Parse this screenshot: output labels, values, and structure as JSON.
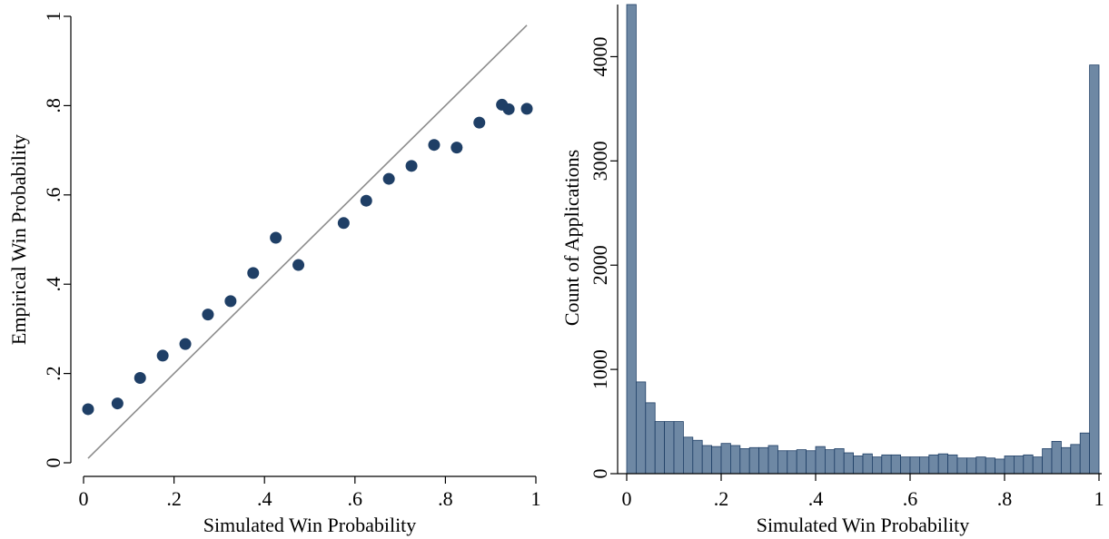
{
  "colors": {
    "marker": "#1f3f66",
    "reference_line": "#8c8c8c",
    "bar_fill": "#6e88a4",
    "bar_stroke": "#1f3f66",
    "axis": "#000000"
  },
  "chart_data": [
    {
      "type": "scatter",
      "title": "",
      "xlabel": "Simulated Win Probability",
      "ylabel": "Empirical Win Probability",
      "xlim": [
        0,
        1
      ],
      "ylim": [
        0,
        1
      ],
      "xticks": [
        0,
        0.2,
        0.4,
        0.6,
        0.8,
        1
      ],
      "xtick_labels": [
        "0",
        ".2",
        ".4",
        ".6",
        ".8",
        "1"
      ],
      "yticks": [
        0,
        0.2,
        0.4,
        0.6,
        0.8,
        1
      ],
      "ytick_labels": [
        "0",
        ".2",
        ".4",
        ".6",
        ".8",
        "1"
      ],
      "grid": false,
      "reference_line": {
        "x": [
          0.01,
          0.98
        ],
        "y": [
          0.01,
          0.98
        ]
      },
      "points": [
        {
          "x": 0.01,
          "y": 0.12
        },
        {
          "x": 0.075,
          "y": 0.133
        },
        {
          "x": 0.125,
          "y": 0.19
        },
        {
          "x": 0.175,
          "y": 0.24
        },
        {
          "x": 0.225,
          "y": 0.266
        },
        {
          "x": 0.275,
          "y": 0.332
        },
        {
          "x": 0.325,
          "y": 0.362
        },
        {
          "x": 0.375,
          "y": 0.425
        },
        {
          "x": 0.425,
          "y": 0.504
        },
        {
          "x": 0.475,
          "y": 0.443
        },
        {
          "x": 0.575,
          "y": 0.537
        },
        {
          "x": 0.625,
          "y": 0.587
        },
        {
          "x": 0.675,
          "y": 0.636
        },
        {
          "x": 0.725,
          "y": 0.665
        },
        {
          "x": 0.775,
          "y": 0.712
        },
        {
          "x": 0.825,
          "y": 0.706
        },
        {
          "x": 0.875,
          "y": 0.762
        },
        {
          "x": 0.925,
          "y": 0.802
        },
        {
          "x": 0.94,
          "y": 0.792
        },
        {
          "x": 0.98,
          "y": 0.793
        }
      ]
    },
    {
      "type": "bar",
      "title": "",
      "xlabel": "Simulated Win Probability",
      "ylabel": "Count of Applications",
      "xlim": [
        0,
        1
      ],
      "ylim": [
        0,
        4500
      ],
      "xticks": [
        0,
        0.2,
        0.4,
        0.6,
        0.8,
        1
      ],
      "xtick_labels": [
        "0",
        ".2",
        ".4",
        ".6",
        ".8",
        "1"
      ],
      "yticks": [
        0,
        1000,
        2000,
        3000,
        4000
      ],
      "ytick_labels": [
        "0",
        "1000",
        "2000",
        "3000",
        "4000"
      ],
      "grid": false,
      "bin_width": 0.02,
      "bin_start": 0,
      "values": [
        4500,
        880,
        680,
        500,
        500,
        500,
        350,
        320,
        270,
        260,
        290,
        270,
        240,
        250,
        250,
        270,
        220,
        220,
        230,
        220,
        260,
        230,
        240,
        200,
        170,
        190,
        160,
        180,
        180,
        160,
        160,
        160,
        180,
        190,
        180,
        150,
        150,
        160,
        150,
        140,
        170,
        170,
        180,
        160,
        240,
        310,
        250,
        280,
        390,
        3920
      ]
    }
  ]
}
